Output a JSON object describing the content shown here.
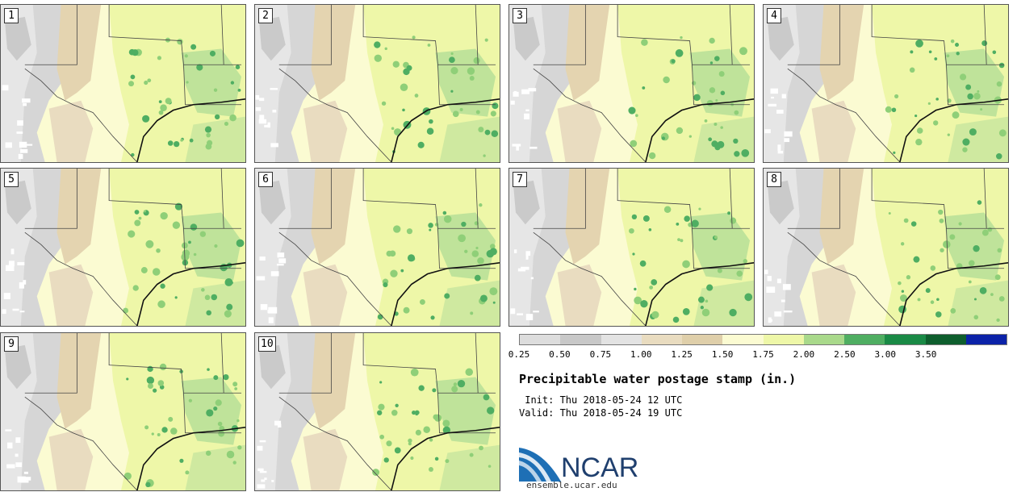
{
  "panels": [
    {
      "label": "1"
    },
    {
      "label": "2"
    },
    {
      "label": "3"
    },
    {
      "label": "4"
    },
    {
      "label": "5"
    },
    {
      "label": "6"
    },
    {
      "label": "7"
    },
    {
      "label": "8"
    },
    {
      "label": "9"
    },
    {
      "label": "10"
    }
  ],
  "colorbar": {
    "ticks": [
      "0.25",
      "0.50",
      "0.75",
      "1.00",
      "1.25",
      "1.50",
      "1.75",
      "2.00",
      "2.50",
      "3.00",
      "3.50"
    ],
    "colors": [
      "#dddddd",
      "#c8c8c8",
      "#e3e3e3",
      "#e9dcc0",
      "#dfcfaa",
      "#fbfbd2",
      "#eef7a8",
      "#a9d98b",
      "#4fae62",
      "#1a8a46",
      "#0e5e2d",
      "#0b22a8"
    ]
  },
  "title": "Precipitable water postage stamp (in.)",
  "init": " Init: Thu 2018-05-24 12 UTC",
  "valid": "Valid: Thu 2018-05-24 19 UTC",
  "logo": {
    "text": "NCAR",
    "url": "ensemble.ucar.edu"
  }
}
